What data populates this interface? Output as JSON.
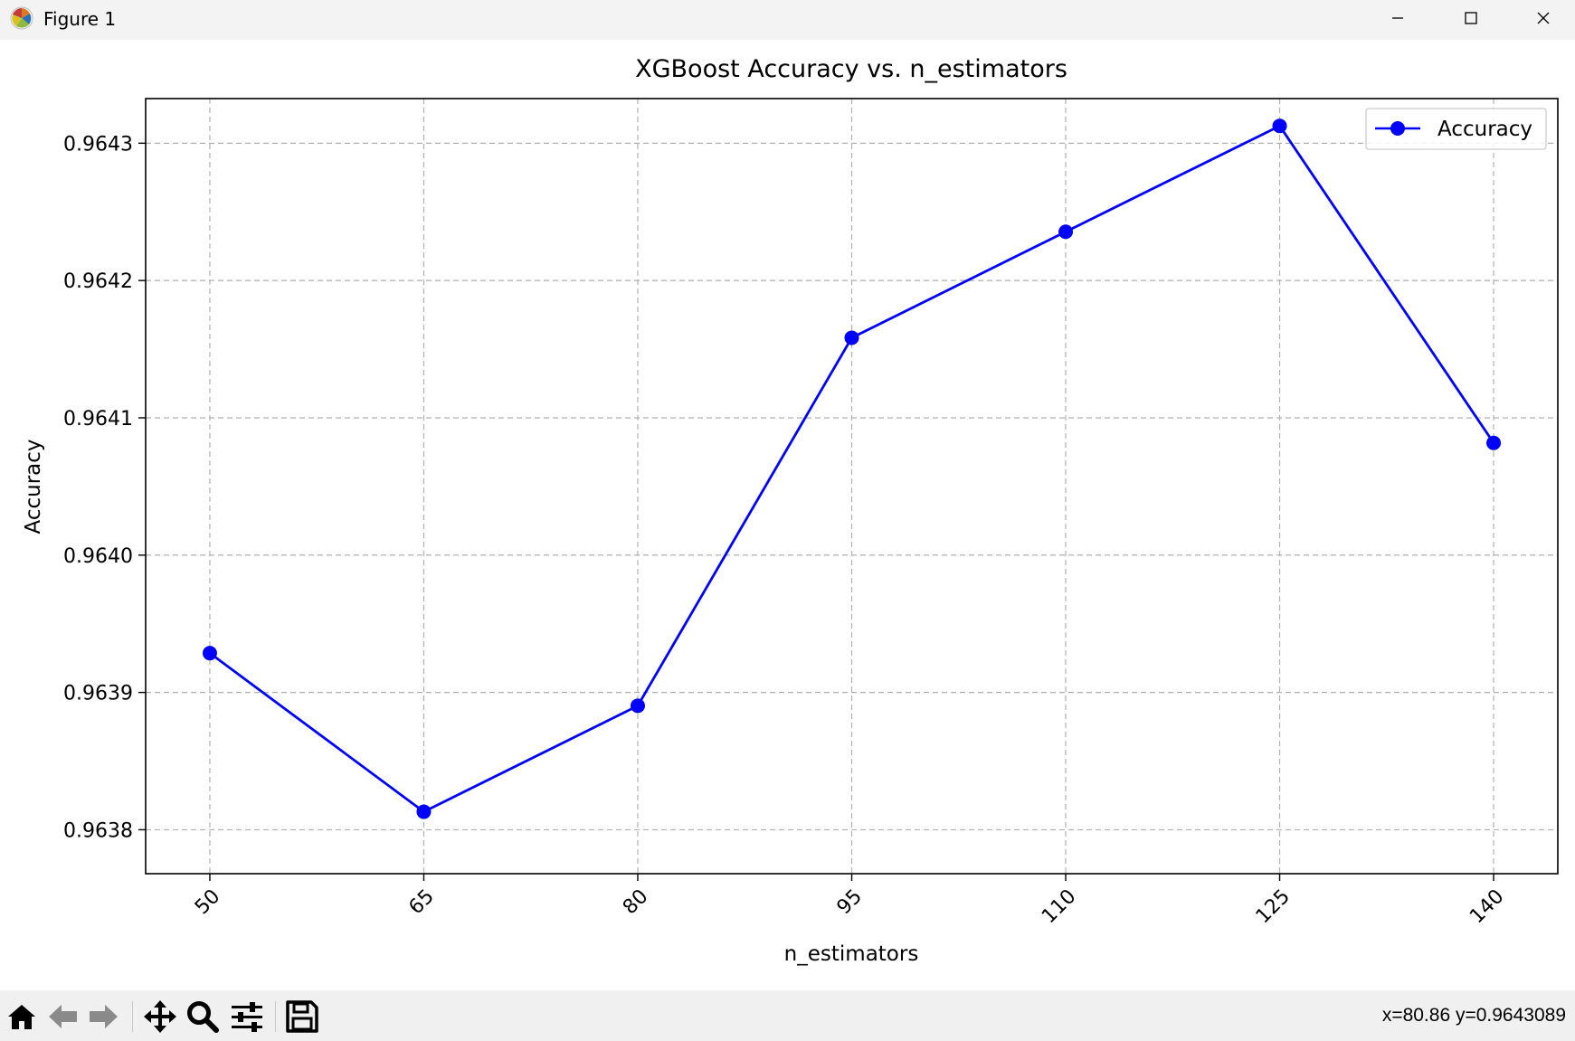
{
  "window": {
    "title": "Figure 1",
    "icons": {
      "app": "matplotlib-logo-icon",
      "minimize": "minimize-icon",
      "maximize": "maximize-icon",
      "close": "close-icon"
    }
  },
  "toolbar": {
    "buttons": [
      {
        "name": "home-button",
        "icon": "home-icon"
      },
      {
        "name": "back-button",
        "icon": "arrow-left-icon"
      },
      {
        "name": "forward-button",
        "icon": "arrow-right-icon"
      },
      {
        "name": "pan-button",
        "icon": "move-icon"
      },
      {
        "name": "zoom-button",
        "icon": "magnifier-icon"
      },
      {
        "name": "configure-subplots-button",
        "icon": "sliders-icon"
      },
      {
        "name": "save-button",
        "icon": "floppy-disk-icon"
      }
    ],
    "coords": "x=80.86 y=0.9643089"
  },
  "chart_data": {
    "type": "line",
    "title": "XGBoost Accuracy vs. n_estimators",
    "xlabel": "n_estimators",
    "ylabel": "Accuracy",
    "x": [
      50,
      65,
      80,
      95,
      110,
      125,
      140
    ],
    "xticks": [
      "50",
      "65",
      "80",
      "95",
      "110",
      "125",
      "140"
    ],
    "xlim": [
      45.5,
      144.5
    ],
    "ylim": [
      0.963768,
      0.9643325
    ],
    "yticks": [
      0.9638,
      0.9639,
      0.964,
      0.9641,
      0.9642,
      0.9643
    ],
    "ytick_labels": [
      "0.9638",
      "0.9639",
      "0.9640",
      "0.9641",
      "0.9642",
      "0.9643"
    ],
    "grid": true,
    "legend": "top-right",
    "series": [
      {
        "name": "Accuracy",
        "color": "#0000ff",
        "marker": "circle",
        "values": [
          0.9639286,
          0.9638131,
          0.9638903,
          0.9641583,
          0.9642355,
          0.9643126,
          0.9640817
        ]
      }
    ]
  }
}
